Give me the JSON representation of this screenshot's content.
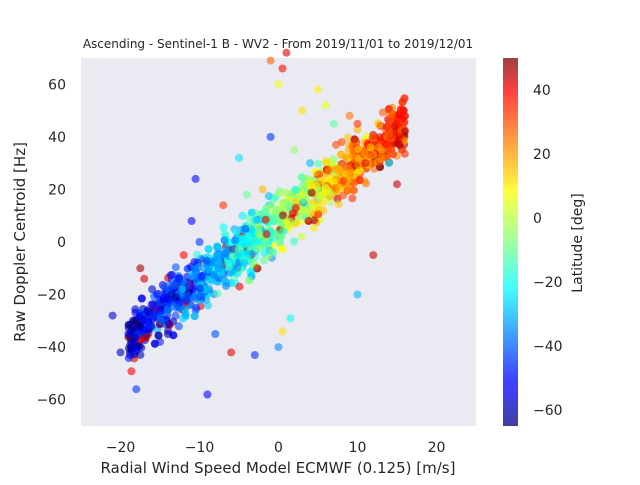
{
  "chart_data": {
    "type": "scatter",
    "title": "Ascending - Sentinel-1 B - WV2 - From 2019/11/01 to 2019/12/01",
    "xlabel": "Radial Wind Speed Model ECMWF (0.125) [m/s]",
    "ylabel": "Raw Doppler Centroid [Hz]",
    "xlim": [
      -25,
      25
    ],
    "ylim": [
      -70,
      70
    ],
    "xticks": [
      -20,
      -10,
      0,
      10,
      20
    ],
    "yticks": [
      -60,
      -40,
      -20,
      0,
      20,
      40,
      60
    ],
    "xtick_labels": [
      "−20",
      "−10",
      "0",
      "10",
      "20"
    ],
    "ytick_labels": [
      "−60",
      "−40",
      "−20",
      "0",
      "20",
      "40",
      "60"
    ],
    "grid": false,
    "background": "#eaeaf2",
    "marker_alpha": 0.6,
    "colorbar": {
      "label": "Latitude [deg]",
      "colormap": "jet",
      "range": [
        -65,
        50
      ],
      "ticks": [
        40,
        20,
        0,
        -20,
        -40,
        -60
      ],
      "tick_labels": [
        "40",
        "20",
        "0",
        "−20",
        "−40",
        "−60"
      ]
    },
    "trend": {
      "note": "points cluster along a positive linear trend; southern latitudes (blue) at negative wind/doppler, tropical/northern latitudes (green-orange) at positive",
      "slope_hz_per_ms": 2.3,
      "intercept_hz": 8
    },
    "points": [
      [
        -21,
        -28,
        -55
      ],
      [
        -20,
        -42,
        -58
      ],
      [
        -19,
        -35,
        -50
      ],
      [
        -18,
        -56,
        -45
      ],
      [
        -18,
        -41,
        -52
      ],
      [
        -17.5,
        -10,
        45
      ],
      [
        -17,
        -14,
        40
      ],
      [
        -16,
        -18,
        -55
      ],
      [
        -15,
        -38,
        -48
      ],
      [
        -14,
        -35,
        -60
      ],
      [
        -13,
        -25,
        -40
      ],
      [
        -12,
        -5,
        35
      ],
      [
        -11,
        8,
        -50
      ],
      [
        -10.5,
        24,
        -50
      ],
      [
        -10,
        0,
        -45
      ],
      [
        -9,
        -58,
        -50
      ],
      [
        -8,
        -35,
        -42
      ],
      [
        -7,
        14,
        30
      ],
      [
        -6,
        -42,
        38
      ],
      [
        -5,
        32,
        -25
      ],
      [
        -4,
        18,
        -10
      ],
      [
        -3,
        -43,
        -45
      ],
      [
        -2,
        20,
        15
      ],
      [
        -1,
        40,
        -45
      ],
      [
        0,
        60,
        5
      ],
      [
        0.5,
        66,
        35
      ],
      [
        -1,
        69,
        25
      ],
      [
        0,
        -40,
        -35
      ],
      [
        0.5,
        -34,
        10
      ],
      [
        1.5,
        -29,
        -20
      ],
      [
        1,
        72,
        40
      ],
      [
        2,
        35,
        -5
      ],
      [
        3,
        50,
        10
      ],
      [
        4,
        30,
        -30
      ],
      [
        5,
        58,
        8
      ],
      [
        6,
        52,
        5
      ],
      [
        7,
        45,
        -12
      ],
      [
        8,
        38,
        28
      ],
      [
        9,
        48,
        22
      ],
      [
        10,
        45,
        30
      ],
      [
        10,
        -20,
        -30
      ],
      [
        11,
        30,
        40
      ],
      [
        12,
        40,
        25
      ],
      [
        12,
        -5,
        42
      ],
      [
        13,
        32,
        20
      ],
      [
        14,
        38,
        30
      ],
      [
        15,
        45,
        35
      ],
      [
        15,
        22,
        42
      ],
      [
        16,
        42,
        45
      ],
      [
        14,
        30,
        -25
      ]
    ]
  }
}
